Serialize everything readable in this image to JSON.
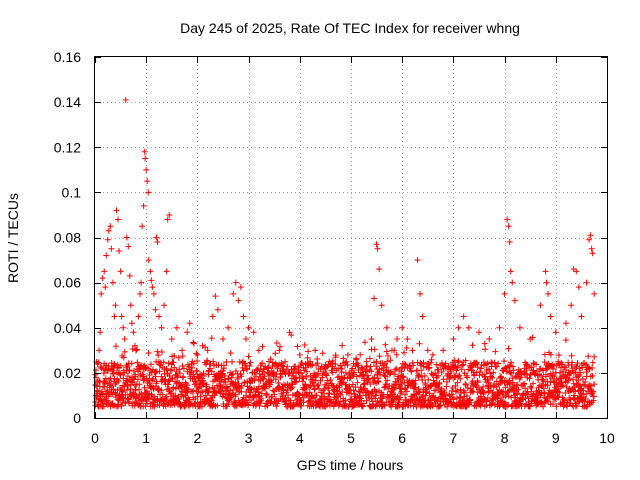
{
  "chart_data": {
    "type": "scatter",
    "title": "Day 245 of 2025, Rate Of TEC Index for receiver whng",
    "xlabel": "GPS time / hours",
    "ylabel": "ROTI / TECUs",
    "xlim": [
      0,
      10
    ],
    "ylim": [
      0,
      0.16
    ],
    "x_ticks": [
      "0",
      "1",
      "2",
      "3",
      "4",
      "5",
      "6",
      "7",
      "8",
      "9",
      "10"
    ],
    "y_ticks": [
      "0",
      "0.02",
      "0.04",
      "0.06",
      "0.08",
      "0.1",
      "0.12",
      "0.14",
      "0.16"
    ],
    "grid": true,
    "marker": "plus",
    "series_color": "#ff0000",
    "x_range_data": [
      0.0,
      9.75
    ],
    "baseline_band": [
      0.005,
      0.025
    ],
    "series": [
      {
        "name": "ROTI",
        "points": [
          [
            0.02,
            0.018
          ],
          [
            0.05,
            0.024
          ],
          [
            0.08,
            0.03
          ],
          [
            0.1,
            0.038
          ],
          [
            0.12,
            0.055
          ],
          [
            0.15,
            0.062
          ],
          [
            0.18,
            0.065
          ],
          [
            0.2,
            0.058
          ],
          [
            0.22,
            0.072
          ],
          [
            0.25,
            0.079
          ],
          [
            0.27,
            0.083
          ],
          [
            0.3,
            0.085
          ],
          [
            0.32,
            0.075
          ],
          [
            0.35,
            0.06
          ],
          [
            0.38,
            0.045
          ],
          [
            0.4,
            0.05
          ],
          [
            0.42,
            0.092
          ],
          [
            0.45,
            0.088
          ],
          [
            0.47,
            0.074
          ],
          [
            0.5,
            0.065
          ],
          [
            0.52,
            0.045
          ],
          [
            0.55,
            0.04
          ],
          [
            0.58,
            0.035
          ],
          [
            0.6,
            0.141
          ],
          [
            0.62,
            0.08
          ],
          [
            0.65,
            0.076
          ],
          [
            0.68,
            0.063
          ],
          [
            0.7,
            0.05
          ],
          [
            0.72,
            0.042
          ],
          [
            0.75,
            0.038
          ],
          [
            0.78,
            0.032
          ],
          [
            0.8,
            0.03
          ],
          [
            0.85,
            0.045
          ],
          [
            0.88,
            0.055
          ],
          [
            0.9,
            0.06
          ],
          [
            0.92,
            0.085
          ],
          [
            0.95,
            0.094
          ],
          [
            0.97,
            0.118
          ],
          [
            0.98,
            0.115
          ],
          [
            1.0,
            0.11
          ],
          [
            1.02,
            0.105
          ],
          [
            1.04,
            0.1
          ],
          [
            1.05,
            0.07
          ],
          [
            1.08,
            0.065
          ],
          [
            1.1,
            0.061
          ],
          [
            1.12,
            0.058
          ],
          [
            1.15,
            0.055
          ],
          [
            1.18,
            0.048
          ],
          [
            1.2,
            0.08
          ],
          [
            1.22,
            0.078
          ],
          [
            1.25,
            0.045
          ],
          [
            1.3,
            0.04
          ],
          [
            1.35,
            0.05
          ],
          [
            1.4,
            0.065
          ],
          [
            1.42,
            0.088
          ],
          [
            1.45,
            0.09
          ],
          [
            1.5,
            0.035
          ],
          [
            1.6,
            0.04
          ],
          [
            1.7,
            0.03
          ],
          [
            1.8,
            0.038
          ],
          [
            1.85,
            0.042
          ],
          [
            1.9,
            0.025
          ],
          [
            2.0,
            0.028
          ],
          [
            2.1,
            0.032
          ],
          [
            2.2,
            0.03
          ],
          [
            2.3,
            0.045
          ],
          [
            2.35,
            0.054
          ],
          [
            2.4,
            0.048
          ],
          [
            2.5,
            0.035
          ],
          [
            2.6,
            0.04
          ],
          [
            2.7,
            0.055
          ],
          [
            2.75,
            0.06
          ],
          [
            2.8,
            0.052
          ],
          [
            2.85,
            0.058
          ],
          [
            2.9,
            0.045
          ],
          [
            2.95,
            0.035
          ],
          [
            3.0,
            0.04
          ],
          [
            3.1,
            0.038
          ],
          [
            3.2,
            0.03
          ],
          [
            3.4,
            0.025
          ],
          [
            3.6,
            0.03
          ],
          [
            3.8,
            0.038
          ],
          [
            4.0,
            0.028
          ],
          [
            4.2,
            0.025
          ],
          [
            4.3,
            0.03
          ],
          [
            4.5,
            0.022
          ],
          [
            4.7,
            0.027
          ],
          [
            4.9,
            0.02
          ],
          [
            5.1,
            0.024
          ],
          [
            5.3,
            0.025
          ],
          [
            5.4,
            0.035
          ],
          [
            5.45,
            0.053
          ],
          [
            5.5,
            0.077
          ],
          [
            5.52,
            0.075
          ],
          [
            5.55,
            0.066
          ],
          [
            5.6,
            0.05
          ],
          [
            5.7,
            0.04
          ],
          [
            5.8,
            0.03
          ],
          [
            5.9,
            0.035
          ],
          [
            6.0,
            0.04
          ],
          [
            6.1,
            0.035
          ],
          [
            6.2,
            0.03
          ],
          [
            6.3,
            0.07
          ],
          [
            6.35,
            0.055
          ],
          [
            6.4,
            0.045
          ],
          [
            6.5,
            0.03
          ],
          [
            6.6,
            0.028
          ],
          [
            6.8,
            0.03
          ],
          [
            7.0,
            0.035
          ],
          [
            7.1,
            0.04
          ],
          [
            7.2,
            0.045
          ],
          [
            7.3,
            0.04
          ],
          [
            7.5,
            0.038
          ],
          [
            7.7,
            0.035
          ],
          [
            7.9,
            0.04
          ],
          [
            8.0,
            0.055
          ],
          [
            8.05,
            0.088
          ],
          [
            8.08,
            0.085
          ],
          [
            8.1,
            0.078
          ],
          [
            8.12,
            0.065
          ],
          [
            8.15,
            0.06
          ],
          [
            8.2,
            0.052
          ],
          [
            8.3,
            0.04
          ],
          [
            8.5,
            0.035
          ],
          [
            8.7,
            0.05
          ],
          [
            8.8,
            0.065
          ],
          [
            8.82,
            0.06
          ],
          [
            8.85,
            0.055
          ],
          [
            8.9,
            0.045
          ],
          [
            9.0,
            0.038
          ],
          [
            9.2,
            0.042
          ],
          [
            9.3,
            0.05
          ],
          [
            9.35,
            0.066
          ],
          [
            9.4,
            0.065
          ],
          [
            9.45,
            0.058
          ],
          [
            9.5,
            0.045
          ],
          [
            9.6,
            0.06
          ],
          [
            9.65,
            0.079
          ],
          [
            9.68,
            0.081
          ],
          [
            9.7,
            0.075
          ],
          [
            9.72,
            0.073
          ],
          [
            9.75,
            0.055
          ]
        ]
      }
    ]
  }
}
